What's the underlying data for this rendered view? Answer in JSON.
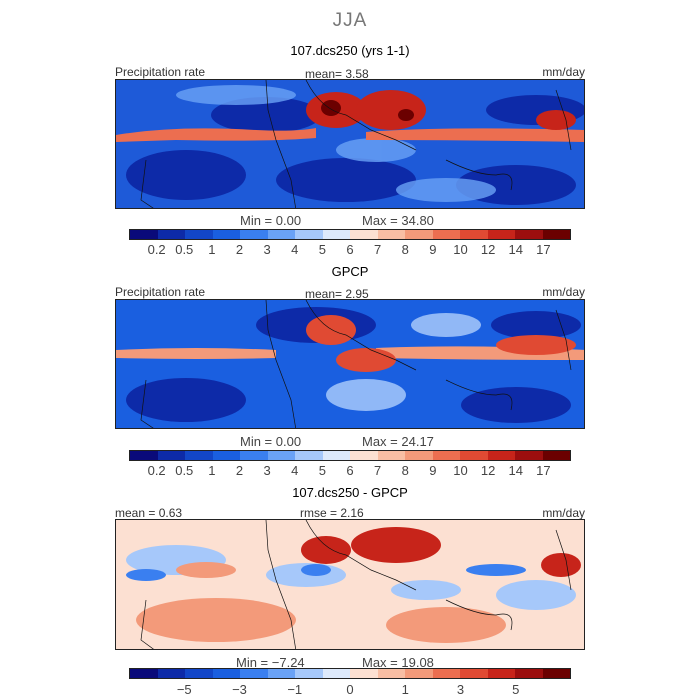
{
  "season": "JJA",
  "panels": [
    {
      "title": "107.dcs250 (yrs 1-1)",
      "left_label": "Precipitation rate",
      "center_label": "mean=   3.58",
      "right_label": "mm/day",
      "min_label": "Min =    0.00",
      "max_label": "Max =   34.80"
    },
    {
      "title": "GPCP",
      "left_label": "Precipitation rate",
      "center_label": "mean=   2.95",
      "right_label": "mm/day",
      "min_label": "Min =    0.00",
      "max_label": "Max =   24.17"
    },
    {
      "title": "107.dcs250 - GPCP",
      "left_label": "mean =   0.63",
      "center_label": "rmse =    2.16",
      "right_label": "mm/day",
      "min_label": "Min =   −7.24",
      "max_label": "Max =   19.08"
    }
  ],
  "colorbars": {
    "precip_colors": [
      "#0a0a7a",
      "#0d2aa8",
      "#1246c8",
      "#1a5fe0",
      "#3a7ff0",
      "#6aa2f6",
      "#a6c8fa",
      "#dde9fb",
      "#fce0d2",
      "#f8bea4",
      "#f39a7a",
      "#ec6e50",
      "#e04a33",
      "#c7241a",
      "#9c0e0e",
      "#6b0000"
    ],
    "precip_ticks": [
      "0.2",
      "0.5",
      "1",
      "2",
      "3",
      "4",
      "5",
      "6",
      "7",
      "8",
      "9",
      "10",
      "12",
      "14",
      "17"
    ],
    "diff_colors": [
      "#0a0a7a",
      "#0d2aa8",
      "#1246c8",
      "#1a5fe0",
      "#3a7ff0",
      "#6aa2f6",
      "#a6c8fa",
      "#dde9fb",
      "#fce0d2",
      "#f8bea4",
      "#f39a7a",
      "#ec6e50",
      "#e04a33",
      "#c7241a",
      "#9c0e0e",
      "#6b0000"
    ],
    "diff_ticks": [
      "−5",
      "−3",
      "−1",
      "0",
      "1",
      "3",
      "5"
    ]
  },
  "chart_data": [
    {
      "type": "heatmap",
      "title": "107.dcs250 (yrs 1-1)",
      "variable": "Precipitation rate",
      "units": "mm/day",
      "mean": 3.58,
      "min": 0.0,
      "max": 34.8,
      "levels": [
        0.2,
        0.5,
        1,
        2,
        3,
        4,
        5,
        6,
        7,
        8,
        9,
        10,
        12,
        14,
        17
      ]
    },
    {
      "type": "heatmap",
      "title": "GPCP",
      "variable": "Precipitation rate",
      "units": "mm/day",
      "mean": 2.95,
      "min": 0.0,
      "max": 24.17,
      "levels": [
        0.2,
        0.5,
        1,
        2,
        3,
        4,
        5,
        6,
        7,
        8,
        9,
        10,
        12,
        14,
        17
      ]
    },
    {
      "type": "heatmap",
      "title": "107.dcs250 - GPCP",
      "units": "mm/day",
      "mean": 0.63,
      "rmse": 2.16,
      "min": -7.24,
      "max": 19.08,
      "levels": [
        -5,
        -3,
        -1,
        0,
        1,
        3,
        5
      ]
    }
  ]
}
